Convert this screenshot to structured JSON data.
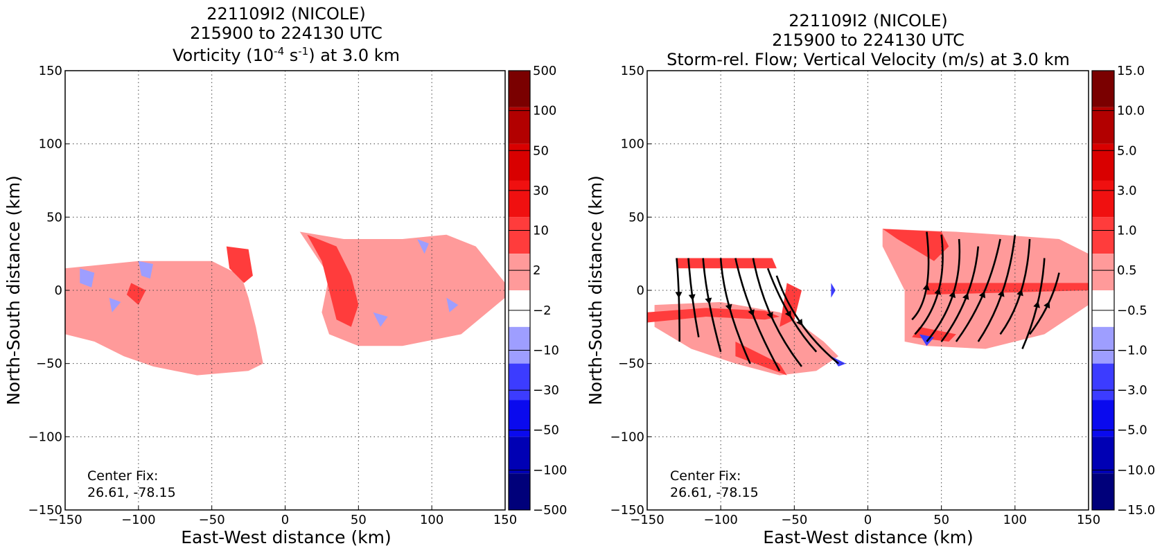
{
  "chart_data": [
    {
      "type": "heatmap",
      "title_lines": [
        "221109I2 (NICOLE)",
        "215900 to 224130 UTC"
      ],
      "title_line3": {
        "prefix": "Vorticity (10",
        "exponent1": "-4",
        "middle": " s",
        "exponent2": "-1",
        "suffix": ") at 3.0 km"
      },
      "xlabel": "East-West distance (km)",
      "ylabel": "North-South distance (km)",
      "xlim": [
        -150,
        150
      ],
      "ylim": [
        -150,
        150
      ],
      "x_ticks": [
        "−150",
        "−100",
        "−50",
        "0",
        "50",
        "100",
        "150"
      ],
      "y_ticks": [
        "150",
        "100",
        "50",
        "0",
        "−50",
        "−100",
        "−150"
      ],
      "grid": true,
      "annotation": [
        "Center Fix:",
        "26.61, -78.15"
      ],
      "colorbar": {
        "ticks": [
          "500",
          "100",
          "50",
          "30",
          "10",
          "2",
          "−2",
          "−10",
          "−30",
          "−50",
          "−100",
          "−500"
        ],
        "colors": [
          "#7a0000",
          "#b20000",
          "#d90000",
          "#f01010",
          "#ff3c3c",
          "#ff9a9a",
          "#ffffff",
          "#9e9eff",
          "#3c3cff",
          "#0a0aee",
          "#0000b4",
          "#00007a"
        ]
      },
      "regions": [
        {
          "level": "10 to 30",
          "color": "#ff9a9a",
          "points": [
            [
              -150,
              15
            ],
            [
              -100,
              20
            ],
            [
              -50,
              20
            ],
            [
              -30,
              10
            ],
            [
              -25,
              -5
            ],
            [
              -20,
              -25
            ],
            [
              -15,
              -50
            ],
            [
              -25,
              -55
            ],
            [
              -60,
              -58
            ],
            [
              -90,
              -52
            ],
            [
              -110,
              -45
            ],
            [
              -130,
              -35
            ],
            [
              -150,
              -30
            ]
          ]
        },
        {
          "level": "10 to 30",
          "color": "#ff9a9a",
          "points": [
            [
              10,
              40
            ],
            [
              40,
              35
            ],
            [
              80,
              35
            ],
            [
              110,
              38
            ],
            [
              130,
              30
            ],
            [
              150,
              5
            ],
            [
              150,
              -5
            ],
            [
              120,
              -30
            ],
            [
              80,
              -38
            ],
            [
              50,
              -38
            ],
            [
              30,
              -30
            ],
            [
              25,
              -15
            ],
            [
              30,
              10
            ]
          ]
        },
        {
          "level": "30 to 50",
          "color": "#ff3c3c",
          "points": [
            [
              -40,
              30
            ],
            [
              -25,
              28
            ],
            [
              -22,
              10
            ],
            [
              -28,
              5
            ],
            [
              -38,
              15
            ]
          ]
        },
        {
          "level": "30 to 50",
          "color": "#ff3c3c",
          "points": [
            [
              -105,
              5
            ],
            [
              -95,
              0
            ],
            [
              -100,
              -10
            ],
            [
              -108,
              -3
            ]
          ]
        },
        {
          "level": "30 to 50",
          "color": "#ff3c3c",
          "points": [
            [
              15,
              38
            ],
            [
              35,
              30
            ],
            [
              45,
              10
            ],
            [
              50,
              -10
            ],
            [
              45,
              -25
            ],
            [
              35,
              -20
            ],
            [
              30,
              0
            ],
            [
              25,
              20
            ]
          ]
        },
        {
          "level": "-10 to -2",
          "color": "#9e9eff",
          "points": [
            [
              -140,
              15
            ],
            [
              -130,
              12
            ],
            [
              -132,
              2
            ],
            [
              -140,
              5
            ]
          ]
        },
        {
          "level": "-10 to -2",
          "color": "#9e9eff",
          "points": [
            [
              -100,
              20
            ],
            [
              -90,
              18
            ],
            [
              -92,
              8
            ],
            [
              -98,
              10
            ]
          ]
        },
        {
          "level": "-10 to -2",
          "color": "#9e9eff",
          "points": [
            [
              -120,
              -5
            ],
            [
              -112,
              -8
            ],
            [
              -118,
              -15
            ]
          ]
        },
        {
          "level": "-10 to -2",
          "color": "#9e9eff",
          "points": [
            [
              90,
              35
            ],
            [
              98,
              32
            ],
            [
              95,
              25
            ]
          ]
        },
        {
          "level": "-10 to -2",
          "color": "#9e9eff",
          "points": [
            [
              60,
              -15
            ],
            [
              70,
              -18
            ],
            [
              65,
              -25
            ]
          ]
        },
        {
          "level": "-10 to -2",
          "color": "#9e9eff",
          "points": [
            [
              110,
              -5
            ],
            [
              118,
              -10
            ],
            [
              112,
              -15
            ]
          ]
        }
      ]
    },
    {
      "type": "heatmap",
      "title_lines": [
        "221109I2 (NICOLE)",
        "215900 to 224130 UTC",
        "Storm-rel. Flow; Vertical Velocity (m/s) at 3.0 km"
      ],
      "xlabel": "East-West distance (km)",
      "ylabel": "North-South distance (km)",
      "xlim": [
        -150,
        150
      ],
      "ylim": [
        -150,
        150
      ],
      "x_ticks": [
        "−150",
        "−100",
        "−50",
        "0",
        "50",
        "100",
        "150"
      ],
      "y_ticks": [
        "150",
        "100",
        "50",
        "0",
        "−50",
        "−100",
        "−150"
      ],
      "grid": true,
      "annotation": [
        "Center Fix:",
        "26.61, -78.15"
      ],
      "colorbar": {
        "ticks": [
          "15.0",
          "10.0",
          "5.0",
          "3.0",
          "1.0",
          "0.5",
          "−0.5",
          "−1.0",
          "−3.0",
          "−5.0",
          "−10.0",
          "−15.0"
        ],
        "colors": [
          "#7a0000",
          "#b20000",
          "#d90000",
          "#f01010",
          "#ff3c3c",
          "#ff9a9a",
          "#ffffff",
          "#9e9eff",
          "#3c3cff",
          "#0a0aee",
          "#0000b4",
          "#00007a"
        ]
      },
      "regions": [
        {
          "level": "0.5 to 1.0",
          "color": "#ff9a9a",
          "points": [
            [
              -145,
              -10
            ],
            [
              -100,
              -8
            ],
            [
              -60,
              -15
            ],
            [
              -50,
              -20
            ],
            [
              -30,
              -35
            ],
            [
              -20,
              -45
            ],
            [
              -35,
              -55
            ],
            [
              -60,
              -58
            ],
            [
              -90,
              -50
            ],
            [
              -120,
              -40
            ],
            [
              -145,
              -25
            ]
          ]
        },
        {
          "level": "1.0 to 3.0",
          "color": "#ff3c3c",
          "points": [
            [
              -150,
              -15
            ],
            [
              -110,
              -12
            ],
            [
              -70,
              -14
            ],
            [
              -60,
              -18
            ],
            [
              -70,
              -20
            ],
            [
              -110,
              -18
            ],
            [
              -150,
              -22
            ]
          ]
        },
        {
          "level": "1.0 to 3.0",
          "color": "#ff3c3c",
          "points": [
            [
              -130,
              22
            ],
            [
              -65,
              22
            ],
            [
              -62,
              15
            ],
            [
              -130,
              15
            ]
          ]
        },
        {
          "level": "1.0 to 3.0",
          "color": "#ff3c3c",
          "points": [
            [
              -55,
              5
            ],
            [
              -45,
              0
            ],
            [
              -50,
              -20
            ],
            [
              -60,
              -25
            ]
          ]
        },
        {
          "level": "1.0 to 3.0",
          "color": "#ff3c3c",
          "points": [
            [
              -90,
              -35
            ],
            [
              -60,
              -50
            ],
            [
              -55,
              -58
            ],
            [
              -90,
              -45
            ]
          ]
        },
        {
          "level": "0.5 to 1.0",
          "color": "#ff9a9a",
          "points": [
            [
              10,
              42
            ],
            [
              60,
              40
            ],
            [
              90,
              38
            ],
            [
              130,
              35
            ],
            [
              150,
              25
            ],
            [
              150,
              -10
            ],
            [
              120,
              -30
            ],
            [
              80,
              -40
            ],
            [
              40,
              -38
            ],
            [
              25,
              -35
            ],
            [
              25,
              0
            ],
            [
              10,
              30
            ]
          ]
        },
        {
          "level": "1.0 to 3.0",
          "color": "#ff3c3c",
          "points": [
            [
              10,
              42
            ],
            [
              50,
              40
            ],
            [
              55,
              30
            ],
            [
              45,
              20
            ],
            [
              20,
              35
            ]
          ]
        },
        {
          "level": "1.0 to 3.0",
          "color": "#ff3c3c",
          "points": [
            [
              40,
              5
            ],
            [
              150,
              5
            ],
            [
              150,
              0
            ],
            [
              40,
              -3
            ]
          ]
        },
        {
          "level": "1.0 to 3.0",
          "color": "#ff3c3c",
          "points": [
            [
              35,
              -25
            ],
            [
              60,
              -30
            ],
            [
              55,
              -35
            ],
            [
              30,
              -32
            ]
          ]
        },
        {
          "level": "-3.0 to -1.0",
          "color": "#3c3cff",
          "points": [
            [
              -25,
              5
            ],
            [
              -22,
              0
            ],
            [
              -25,
              -5
            ]
          ]
        },
        {
          "level": "-3.0 to -1.0",
          "color": "#3c3cff",
          "points": [
            [
              -25,
              -45
            ],
            [
              -15,
              -50
            ],
            [
              -20,
              -52
            ]
          ]
        },
        {
          "level": "-3.0 to -1.0",
          "color": "#3c3cff",
          "points": [
            [
              35,
              -30
            ],
            [
              45,
              -32
            ],
            [
              40,
              -38
            ]
          ]
        }
      ],
      "streamlines": [
        [
          [
            -130,
            22
          ],
          [
            -128,
            0
          ],
          [
            -128,
            -35
          ]
        ],
        [
          [
            -122,
            22
          ],
          [
            -120,
            -5
          ],
          [
            -115,
            -32
          ]
        ],
        [
          [
            -112,
            22
          ],
          [
            -110,
            -5
          ],
          [
            -100,
            -42
          ]
        ],
        [
          [
            -100,
            22
          ],
          [
            -98,
            -10
          ],
          [
            -80,
            -50
          ]
        ],
        [
          [
            -90,
            22
          ],
          [
            -82,
            -15
          ],
          [
            -60,
            -55
          ]
        ],
        [
          [
            -78,
            22
          ],
          [
            -70,
            -20
          ],
          [
            -45,
            -52
          ]
        ],
        [
          [
            -68,
            15
          ],
          [
            -55,
            -20
          ],
          [
            -35,
            -42
          ]
        ],
        [
          [
            -62,
            10
          ],
          [
            -50,
            -25
          ],
          [
            -20,
            -50
          ]
        ],
        [
          [
            30,
            -20
          ],
          [
            45,
            -5
          ],
          [
            40,
            40
          ]
        ],
        [
          [
            32,
            -30
          ],
          [
            55,
            -5
          ],
          [
            50,
            38
          ]
        ],
        [
          [
            40,
            -35
          ],
          [
            65,
            -5
          ],
          [
            62,
            35
          ]
        ],
        [
          [
            50,
            -35
          ],
          [
            72,
            -5
          ],
          [
            75,
            30
          ]
        ],
        [
          [
            60,
            -35
          ],
          [
            82,
            -5
          ],
          [
            90,
            35
          ]
        ],
        [
          [
            75,
            -35
          ],
          [
            95,
            -5
          ],
          [
            100,
            38
          ]
        ],
        [
          [
            90,
            -30
          ],
          [
            108,
            -5
          ],
          [
            110,
            35
          ]
        ],
        [
          [
            105,
            -40
          ],
          [
            118,
            -10
          ],
          [
            120,
            22
          ]
        ],
        [
          [
            110,
            -30
          ],
          [
            125,
            -10
          ],
          [
            130,
            12
          ]
        ]
      ]
    }
  ]
}
